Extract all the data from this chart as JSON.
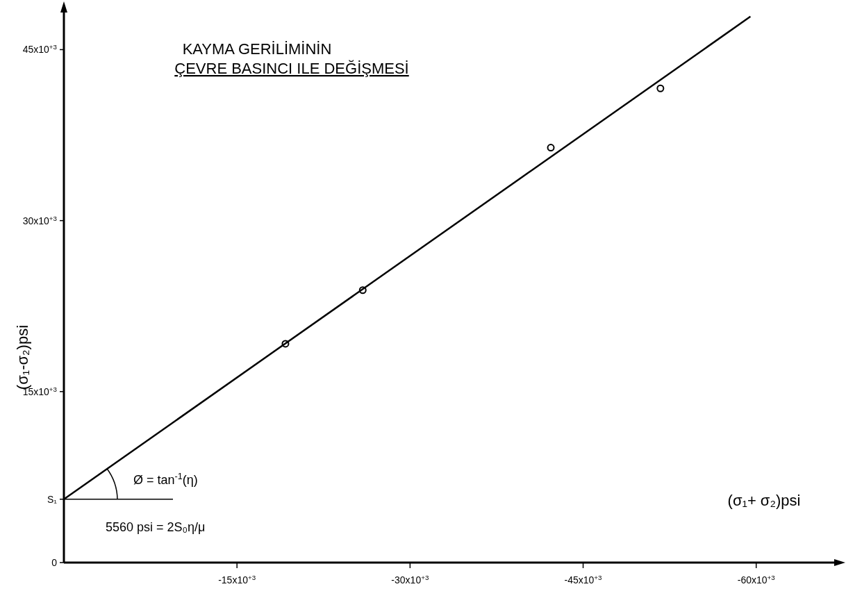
{
  "chart_data": {
    "type": "scatter",
    "title": "KAYMA GERİLİMİNİN\nÇEVRE BASINCI ILE DEĞİŞMESİ",
    "xlabel": "(σ₁+ σ₂)psi",
    "ylabel": "(σ₁-σ₂)psi",
    "xlim": [
      0,
      -67000
    ],
    "ylim": [
      0,
      48500
    ],
    "xticks": [
      {
        "value": -15000,
        "label": "-15x10$^{+3}$"
      },
      {
        "value": -30000,
        "label": "-30x10$^{+3}$"
      },
      {
        "value": -45000,
        "label": "-45x10$^{+3}$"
      },
      {
        "value": -60000,
        "label": "-60x10$^{+3}$"
      }
    ],
    "yticks": [
      {
        "value": 0,
        "label": "0"
      },
      {
        "value": 5560,
        "label": "S₁"
      },
      {
        "value": 15000,
        "label": "15x10$^{+3}$"
      },
      {
        "value": 30000,
        "label": "30x10$^{+3}$"
      },
      {
        "value": 45000,
        "label": "45x10$^{+3}$"
      }
    ],
    "grid": false,
    "marker": "circle",
    "series": [
      {
        "color": "#000000",
        "x": [
          -19200,
          -25900,
          -42200,
          -51700
        ],
        "values": [
          19200,
          23900,
          36400,
          41600
        ]
      },
      {
        "type": "line",
        "color": "#000000",
        "marker": "none",
        "line_style": "solid",
        "x": [
          0,
          -59500
        ],
        "values": [
          5560,
          47900
        ]
      }
    ],
    "annotations": [
      {
        "text": "Ø = tan$^{-1}$(η)",
        "x": 0,
        "y": 5560
      },
      "5560 psi = 2S₀η/μ"
    ]
  }
}
